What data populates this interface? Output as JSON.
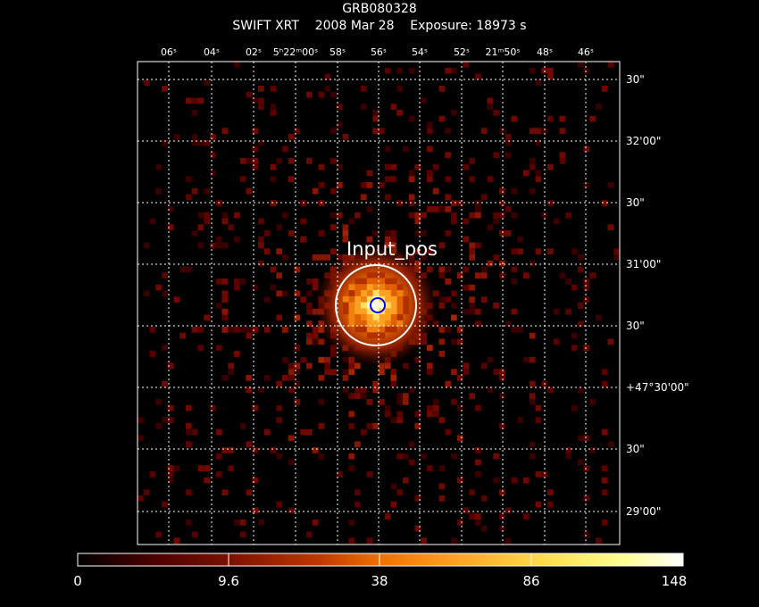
{
  "header": {
    "object_name": "GRB080328",
    "subtitle": "SWIFT XRT    2008 Mar 28    Exposure: 18973 s"
  },
  "sky": {
    "ra_ticks": [
      "06ˢ",
      "04ˢ",
      "02ˢ",
      "5ʰ22ᵐ00ˢ",
      "58ˢ",
      "56ˢ",
      "54ˢ",
      "52ˢ",
      "21ᵐ50ˢ",
      "48ˢ",
      "46ˢ"
    ],
    "dec_ticks": [
      "30\"",
      "32'00\"",
      "30\"",
      "31'00\"",
      "30\"",
      "+47°30'00\"",
      "30\"",
      "29'00\""
    ],
    "source_label": "Input_pos"
  },
  "colorbar": {
    "tick_labels": [
      "0",
      "9.6",
      "38",
      "86",
      "148"
    ],
    "values": [
      0,
      9.6,
      38,
      86,
      148
    ],
    "colormap": [
      "#000000",
      "#5a0000",
      "#a02000",
      "#e06000",
      "#ff9a10",
      "#ffd850",
      "#ffff90",
      "#ffffff"
    ]
  },
  "markers": {
    "source_circle_color": "#ffffff",
    "input_position_color": "#0000ff"
  }
}
